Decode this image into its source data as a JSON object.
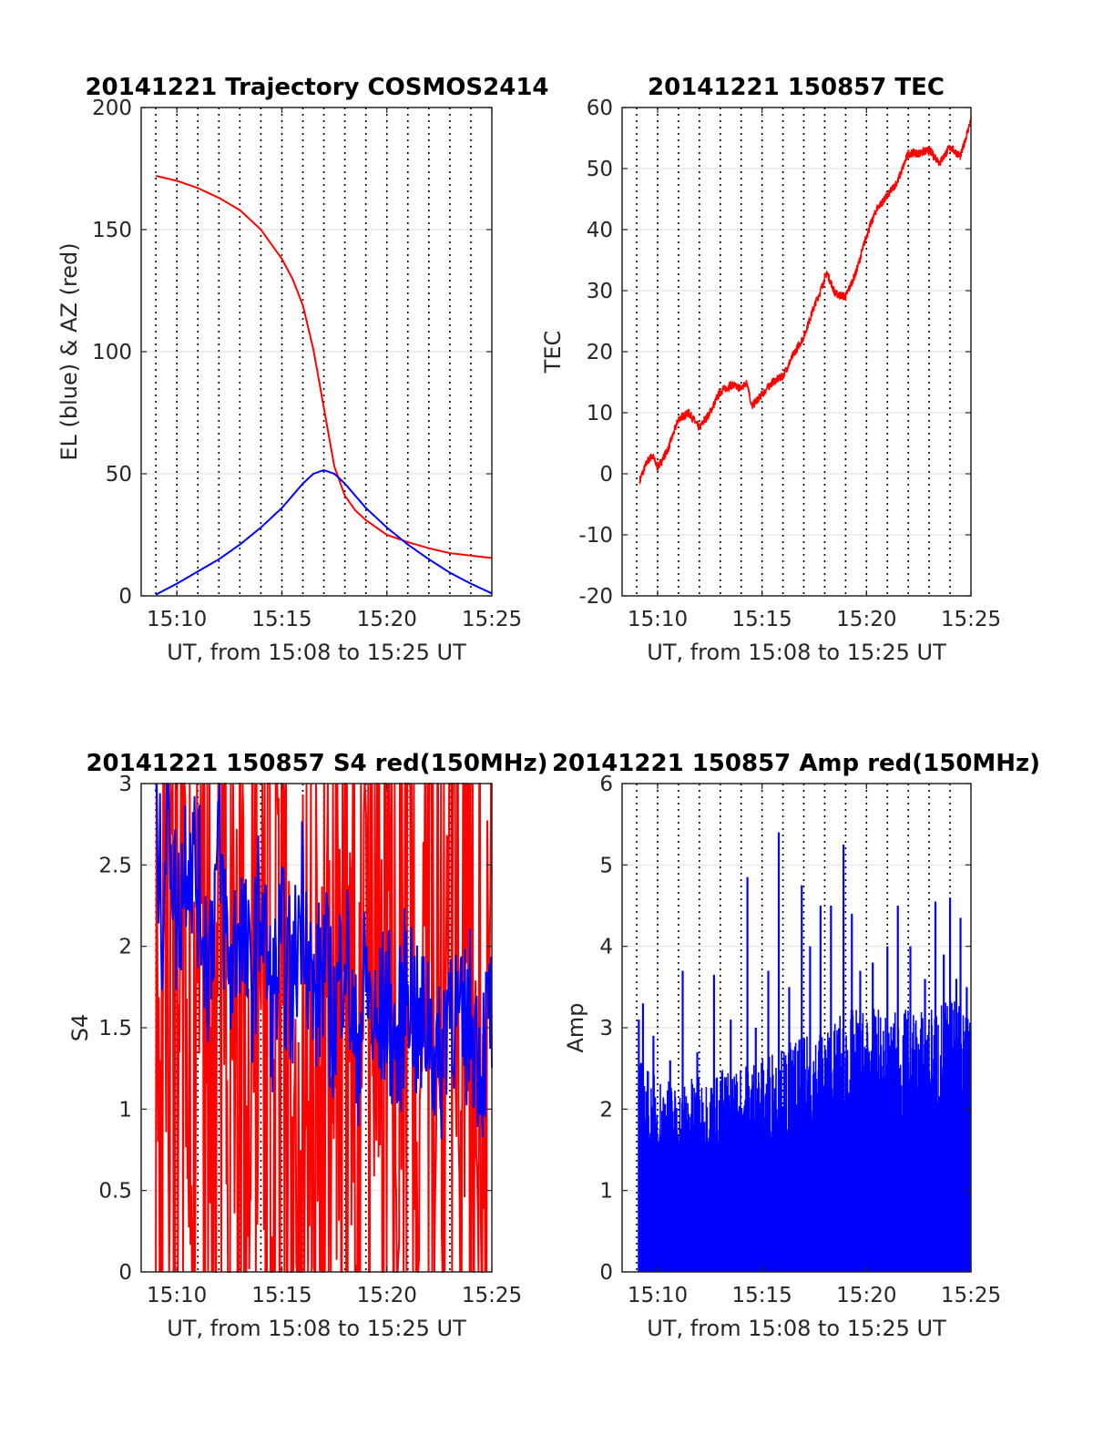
{
  "figure": {
    "background": "#ffffff"
  },
  "chart_data": [
    {
      "type": "line",
      "title": "20141221 Trajectory COSMOS2414",
      "xlabel": "UT, from 15:08 to 15:25 UT",
      "ylabel": "EL (blue) & AZ (red)",
      "x_units": "minutes after 15:00 UT",
      "xlim": [
        8.3,
        25
      ],
      "ylim": [
        0,
        200
      ],
      "x_ticks": [
        10,
        15,
        20,
        25
      ],
      "x_tick_labels": [
        "15:10",
        "15:15",
        "15:20",
        "15:25"
      ],
      "y_ticks": [
        0,
        50,
        100,
        150,
        200
      ],
      "y_tick_labels": [
        "0",
        "50",
        "100",
        "150",
        "200"
      ],
      "vertical_dotted_lines": [
        9,
        10,
        11,
        12,
        13,
        14,
        15,
        16,
        17,
        18,
        19,
        20,
        21,
        22,
        23,
        24
      ],
      "grid": true,
      "series": [
        {
          "color": "#ff0000",
          "x": [
            9,
            10,
            11,
            12,
            13,
            14,
            15,
            15.5,
            16,
            16.5,
            17,
            17.5,
            18,
            18.5,
            19,
            20,
            21,
            22,
            23,
            24,
            25
          ],
          "values": [
            172,
            170,
            167,
            163,
            158,
            150,
            138,
            130,
            119,
            101,
            77,
            53,
            41,
            35,
            31,
            25,
            22,
            19.5,
            17.5,
            16.5,
            15.5
          ]
        },
        {
          "color": "#0000ff",
          "x": [
            9,
            10,
            11,
            12,
            13,
            14,
            15,
            15.5,
            16,
            16.5,
            17,
            17.5,
            18,
            18.5,
            19,
            20,
            21,
            22,
            23,
            24,
            25
          ],
          "values": [
            0.5,
            5,
            10,
            15,
            21,
            28,
            36,
            41,
            46,
            50,
            51.5,
            50,
            46,
            41,
            36,
            28,
            21,
            15,
            9.5,
            5,
            1
          ]
        }
      ]
    },
    {
      "type": "line",
      "title": "20141221 150857 TEC",
      "xlabel": "UT, from 15:08 to 15:25 UT",
      "ylabel": "TEC",
      "x_units": "minutes after 15:00 UT",
      "xlim": [
        8.3,
        25
      ],
      "ylim": [
        -20,
        60
      ],
      "x_ticks": [
        10,
        15,
        20,
        25
      ],
      "x_tick_labels": [
        "15:10",
        "15:15",
        "15:20",
        "15:25"
      ],
      "y_ticks": [
        -20,
        -10,
        0,
        10,
        20,
        30,
        40,
        50,
        60
      ],
      "y_tick_labels": [
        "-20",
        "-10",
        "0",
        "10",
        "20",
        "30",
        "40",
        "50",
        "60"
      ],
      "vertical_dotted_lines": [
        9,
        10,
        11,
        12,
        13,
        14,
        15,
        16,
        17,
        18,
        19,
        20,
        21,
        22,
        23,
        24
      ],
      "grid": true,
      "series": [
        {
          "color": "#ff0000",
          "x": [
            9.15,
            9.5,
            9.75,
            10,
            10.5,
            11,
            11.5,
            12,
            12.5,
            13,
            13.5,
            14,
            14.3,
            14.5,
            15,
            15.5,
            16,
            16.5,
            17,
            17.5,
            17.8,
            18.1,
            18.5,
            19,
            19.5,
            20,
            20.5,
            21,
            21.5,
            22,
            22.5,
            23,
            23.5,
            24,
            24.5,
            25
          ],
          "values": [
            -1,
            2,
            3,
            1,
            4,
            9,
            10,
            7.5,
            10,
            13.5,
            14.5,
            14,
            15,
            11,
            13,
            15,
            16,
            19.5,
            22.5,
            27.5,
            30,
            33,
            29.5,
            29,
            33,
            39,
            43.5,
            45.5,
            48,
            52.5,
            52.5,
            53,
            51,
            53.5,
            52,
            58
          ]
        }
      ]
    },
    {
      "type": "line",
      "title": "20141221 150857 S4 red(150MHz)",
      "xlabel": "UT, from 15:08 to 15:25 UT",
      "ylabel": "S4",
      "x_units": "minutes after 15:00 UT",
      "xlim": [
        8.3,
        25
      ],
      "ylim": [
        0,
        3
      ],
      "x_ticks": [
        10,
        15,
        20,
        25
      ],
      "x_tick_labels": [
        "15:10",
        "15:15",
        "15:20",
        "15:25"
      ],
      "y_ticks": [
        0,
        0.5,
        1,
        1.5,
        2,
        2.5,
        3
      ],
      "y_tick_labels": [
        "0",
        "0.5",
        "1",
        "1.5",
        "2",
        "2.5",
        "3"
      ],
      "vertical_dotted_lines": [
        9,
        10,
        11,
        12,
        13,
        14,
        15,
        16,
        17,
        18,
        19,
        20,
        21,
        22,
        23,
        24
      ],
      "grid": true,
      "series": [
        {
          "color": "#ff0000",
          "note_x_range": [
            9,
            25
          ],
          "x": [
            9.0,
            9.2,
            9.4,
            9.6,
            9.8,
            10.0,
            10.3,
            10.6,
            11.0,
            11.5,
            12.0,
            12.5,
            13.0,
            13.5,
            14.0,
            14.5,
            15.0,
            15.5,
            16.0,
            16.5,
            17.0,
            17.5,
            18.0,
            18.5,
            19.0,
            19.5,
            20.0,
            20.5,
            21.0,
            21.5,
            22.0,
            22.5,
            23.0,
            23.5,
            24.0,
            24.5,
            25.0
          ],
          "values": [
            3,
            0,
            3,
            0,
            2.8,
            0.2,
            3,
            0,
            2.5,
            0,
            3,
            0.1,
            2.9,
            0.3,
            1.8,
            0,
            3,
            0.4,
            2.2,
            0.6,
            3,
            0.5,
            2.6,
            0.2,
            3,
            0.8,
            3,
            0,
            3,
            0.1,
            3,
            0,
            3,
            0.2,
            3,
            0,
            3
          ]
        },
        {
          "color": "#0000ff",
          "x": [
            9.0,
            9.3,
            9.6,
            10.0,
            10.5,
            11.0,
            11.5,
            12.0,
            12.5,
            13.0,
            13.5,
            14.0,
            14.5,
            15.0,
            15.5,
            16.0,
            16.5,
            17.0,
            17.5,
            18.0,
            18.5,
            19.0,
            19.5,
            20.0,
            20.5,
            21.0,
            21.5,
            22.0,
            22.5,
            23.0,
            23.5,
            24.0,
            24.5,
            25.0
          ],
          "values": [
            2.8,
            2.2,
            3,
            2.1,
            2.7,
            2.4,
            1.9,
            2.6,
            1.8,
            2.2,
            1.7,
            2.3,
            1.6,
            2.0,
            1.7,
            2.4,
            1.6,
            1.9,
            1.5,
            2.1,
            1.3,
            1.8,
            1.4,
            1.7,
            1.3,
            1.9,
            1.4,
            1.6,
            1.2,
            1.8,
            1.4,
            1.6,
            1.3,
            1.6
          ]
        }
      ]
    },
    {
      "type": "bar",
      "title": "20141221 150857 Amp red(150MHz)",
      "xlabel": "UT, from 15:08 to 15:25 UT",
      "ylabel": "Amp",
      "x_units": "minutes after 15:00 UT",
      "xlim": [
        8.3,
        25
      ],
      "ylim": [
        0,
        6
      ],
      "x_ticks": [
        10,
        15,
        20,
        25
      ],
      "x_tick_labels": [
        "15:10",
        "15:15",
        "15:20",
        "15:25"
      ],
      "y_ticks": [
        0,
        1,
        2,
        3,
        4,
        5,
        6
      ],
      "y_tick_labels": [
        "0",
        "1",
        "2",
        "3",
        "4",
        "5",
        "6"
      ],
      "vertical_dotted_lines": [
        9,
        10,
        11,
        12,
        13,
        14,
        15,
        16,
        17,
        18,
        19,
        20,
        21,
        22,
        23,
        24
      ],
      "grid": true,
      "series": [
        {
          "color": "#0000ff",
          "fill_x_range": [
            9.15,
            25
          ],
          "envelope_x": [
            9.15,
            9.5,
            10,
            10.5,
            11,
            11.5,
            12,
            12.5,
            13,
            13.5,
            14,
            14.5,
            15,
            15.5,
            16,
            16.5,
            17,
            17.5,
            18,
            18.5,
            19,
            19.5,
            20,
            20.5,
            21,
            21.5,
            22,
            22.5,
            23,
            23.5,
            24,
            24.5,
            25
          ],
          "envelope_values": [
            2.2,
            2.1,
            2.0,
            2.0,
            1.9,
            2.0,
            2.0,
            2.0,
            2.1,
            2.1,
            2.1,
            2.2,
            2.2,
            2.3,
            2.3,
            2.4,
            2.4,
            2.5,
            2.5,
            2.6,
            2.7,
            2.7,
            2.7,
            2.7,
            2.6,
            2.7,
            2.7,
            2.7,
            2.7,
            2.8,
            2.8,
            2.8,
            2.9
          ],
          "peaks_x": [
            9.1,
            9.3,
            9.8,
            10.6,
            11.2,
            11.9,
            12.7,
            13.5,
            14.3,
            14.7,
            15.3,
            15.8,
            16.3,
            16.9,
            17.3,
            17.8,
            18.3,
            18.9,
            19.3,
            19.7,
            20.3,
            21.0,
            21.5,
            22.1,
            22.8,
            23.3,
            23.7,
            24.0,
            24.3,
            24.5,
            24.8
          ],
          "peaks_values": [
            3.1,
            3.3,
            2.9,
            2.6,
            3.7,
            2.7,
            3.65,
            3.1,
            4.85,
            3.0,
            3.7,
            5.4,
            3.5,
            4.75,
            4.0,
            4.5,
            4.5,
            5.25,
            4.4,
            3.7,
            3.8,
            4.0,
            4.5,
            4.0,
            3.6,
            4.55,
            3.9,
            4.6,
            3.6,
            4.35,
            3.5
          ]
        }
      ]
    }
  ]
}
